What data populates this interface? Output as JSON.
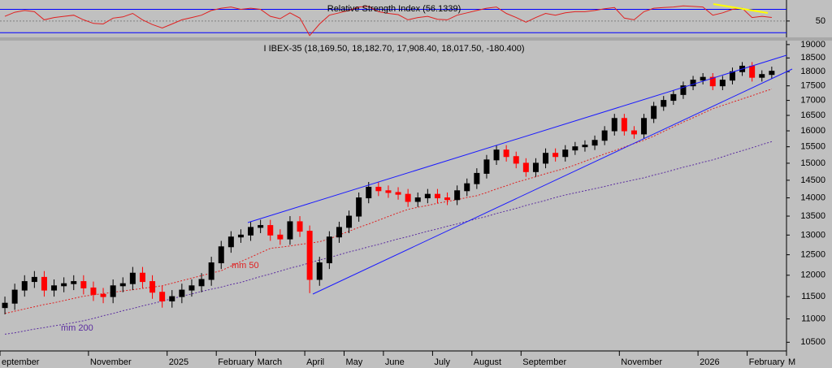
{
  "chart_data": [
    {
      "type": "candlestick",
      "title": "I IBEX-35 (18,169.50, 18,182.70, 17,908.40, 18,017.50, -180.400)",
      "categories": [
        "eptember",
        null,
        null,
        null,
        null,
        null,
        null,
        null,
        null,
        "November",
        null,
        null,
        null,
        null,
        null,
        null,
        null,
        "2025",
        null,
        null,
        null,
        null,
        "February",
        null,
        null,
        null,
        "March",
        null,
        null,
        null,
        null,
        "April",
        null,
        null,
        null,
        "May",
        null,
        null,
        null,
        "June",
        null,
        null,
        null,
        null,
        "July",
        null,
        null,
        null,
        "August",
        null,
        null,
        null,
        null,
        "September",
        null,
        null,
        null,
        null,
        null,
        null,
        null,
        null,
        null,
        "November",
        null,
        null,
        null,
        null,
        null,
        null,
        null,
        "2026",
        null,
        null,
        null,
        null,
        "February",
        null,
        null,
        null,
        "M"
      ],
      "open": [
        11250,
        11350,
        11650,
        11850,
        11950,
        11650,
        11750,
        11800,
        11850,
        11700,
        11550,
        11500,
        11750,
        11800,
        12050,
        11850,
        11600,
        11400,
        11500,
        11650,
        11750,
        11900,
        12300,
        12700,
        12950,
        13000,
        13200,
        13250,
        13000,
        12900,
        13350,
        13100,
        11900,
        12300,
        12950,
        13200,
        13500,
        14000,
        14300,
        14200,
        14150,
        14100,
        13900,
        14000,
        14100,
        14000,
        13950,
        14200,
        14400,
        14700,
        15100,
        15400,
        15200,
        15000,
        14750,
        15000,
        15300,
        15200,
        15400,
        15500,
        15550,
        15700,
        16000,
        16400,
        16000,
        15900,
        16400,
        16800,
        17000,
        17200,
        17500,
        17700,
        17800,
        17500,
        17700,
        18000,
        18200,
        17800,
        17900,
        null,
        null
      ],
      "high": [
        11500,
        11800,
        12000,
        12100,
        12100,
        11900,
        11950,
        12000,
        12000,
        11850,
        11700,
        11900,
        11950,
        12200,
        12200,
        12000,
        11750,
        11650,
        11800,
        11900,
        12050,
        12450,
        12850,
        13100,
        13150,
        13350,
        13400,
        13400,
        13150,
        13500,
        13500,
        13250,
        12450,
        13100,
        13350,
        13650,
        14150,
        14450,
        14450,
        14350,
        14300,
        14250,
        14150,
        14250,
        14250,
        14150,
        14350,
        14550,
        14850,
        15250,
        15550,
        15550,
        15350,
        15150,
        15150,
        15450,
        15450,
        15550,
        15650,
        15700,
        15850,
        16150,
        16550,
        16550,
        16150,
        16550,
        16950,
        17150,
        17350,
        17650,
        17850,
        17950,
        17950,
        17850,
        18150,
        18350,
        18350,
        18050,
        18182.7,
        null,
        null
      ],
      "low": [
        11100,
        11200,
        11500,
        11700,
        11500,
        11500,
        11600,
        11650,
        11550,
        11400,
        11350,
        11350,
        11600,
        11650,
        11700,
        11450,
        11250,
        11250,
        11350,
        11500,
        11600,
        11750,
        12150,
        12550,
        12800,
        12850,
        13050,
        12850,
        12750,
        12750,
        12950,
        11580,
        11750,
        12150,
        12800,
        13050,
        13350,
        13850,
        14050,
        14000,
        13950,
        13750,
        13750,
        13850,
        13850,
        13800,
        13800,
        14050,
        14250,
        14550,
        14950,
        15050,
        14850,
        14600,
        14600,
        14850,
        15050,
        15050,
        15250,
        15350,
        15400,
        15550,
        15850,
        15850,
        15750,
        15750,
        16250,
        16650,
        16850,
        17050,
        17350,
        17550,
        17350,
        17350,
        17550,
        17850,
        17650,
        17650,
        17750,
        null,
        null
      ],
      "close": [
        11350,
        11650,
        11850,
        11950,
        11650,
        11750,
        11800,
        11850,
        11700,
        11550,
        11500,
        11750,
        11800,
        12050,
        11850,
        11600,
        11400,
        11500,
        11650,
        11750,
        11900,
        12300,
        12700,
        12950,
        13000,
        13200,
        13250,
        13000,
        12900,
        13350,
        13100,
        11900,
        12300,
        12950,
        13200,
        13500,
        14000,
        14300,
        14200,
        14150,
        14100,
        13900,
        14000,
        14100,
        14000,
        13950,
        14200,
        14400,
        14700,
        15100,
        15400,
        15200,
        15000,
        14750,
        15000,
        15300,
        15200,
        15400,
        15500,
        15550,
        15700,
        16000,
        16400,
        16000,
        15900,
        16400,
        16800,
        17000,
        17200,
        17500,
        17700,
        17800,
        17500,
        17700,
        18000,
        18200,
        17800,
        17900,
        18017.5,
        null,
        null
      ],
      "up_color": "#000000",
      "down_color": "#ff0000",
      "series": [
        {
          "name": "mm 50",
          "color": "#e02020",
          "values": [
            11120,
            11170,
            11220,
            11270,
            11320,
            11360,
            11410,
            11460,
            11510,
            11540,
            11570,
            11600,
            11630,
            11660,
            11690,
            11720,
            11750,
            11810,
            11870,
            11930,
            11990,
            12050,
            12110,
            12220,
            12330,
            12440,
            12550,
            12660,
            12690,
            12720,
            12760,
            12790,
            12830,
            12900,
            13000,
            13100,
            13200,
            13290,
            13390,
            13490,
            13590,
            13680,
            13740,
            13790,
            13850,
            13900,
            13950,
            14010,
            14060,
            14150,
            14250,
            14340,
            14440,
            14520,
            14600,
            14690,
            14770,
            14850,
            14950,
            15060,
            15170,
            15280,
            15380,
            15490,
            15600,
            15700,
            15830,
            15980,
            16130,
            16280,
            16420,
            16570,
            16720,
            16830,
            16940,
            17050,
            17160,
            17280,
            17390,
            null,
            null
          ]
        },
        {
          "name": "mm 200",
          "color": "#5a2ca0",
          "values": [
            10670,
            10700,
            10740,
            10780,
            10810,
            10850,
            10880,
            10920,
            10960,
            11010,
            11070,
            11120,
            11180,
            11230,
            11290,
            11340,
            11400,
            11450,
            11510,
            11560,
            11620,
            11670,
            11720,
            11780,
            11830,
            11900,
            11970,
            12030,
            12100,
            12170,
            12230,
            12300,
            12370,
            12430,
            12500,
            12570,
            12630,
            12700,
            12760,
            12830,
            12900,
            12960,
            13030,
            13100,
            13160,
            13230,
            13290,
            13360,
            13430,
            13490,
            13570,
            13640,
            13710,
            13790,
            13860,
            13930,
            14010,
            14080,
            14140,
            14200,
            14260,
            14320,
            14390,
            14450,
            14510,
            14570,
            14650,
            14720,
            14800,
            14880,
            14950,
            15030,
            15100,
            15190,
            15290,
            15380,
            15470,
            15570,
            15660,
            null,
            null
          ]
        }
      ],
      "ylim": [
        10320,
        19150
      ],
      "log_scale": true,
      "yticks": [
        10500,
        11000,
        11500,
        12000,
        12500,
        13000,
        13500,
        14000,
        14500,
        15000,
        15500,
        16000,
        16500,
        17000,
        17500,
        18000,
        18500,
        19000
      ]
    },
    {
      "type": "line",
      "title": "Relative Strength Index (56.1339)",
      "color": "#e02020",
      "values": [
        58,
        65,
        68,
        66,
        52,
        56,
        58,
        60,
        52,
        46,
        45,
        55,
        57,
        63,
        52,
        44,
        38,
        45,
        52,
        56,
        60,
        68,
        72,
        74,
        70,
        72,
        70,
        58,
        54,
        64,
        55,
        25,
        45,
        60,
        64,
        68,
        74,
        75,
        66,
        63,
        61,
        52,
        56,
        58,
        53,
        52,
        60,
        64,
        68,
        72,
        74,
        63,
        56,
        48,
        56,
        63,
        60,
        64,
        66,
        66,
        68,
        71,
        73,
        55,
        52,
        66,
        72,
        73,
        74,
        76,
        75,
        74,
        60,
        64,
        70,
        72,
        56,
        58,
        56.1339,
        null,
        null
      ],
      "ylim": [
        22,
        86
      ],
      "yticks": [
        50
      ],
      "bands": [
        30,
        70
      ],
      "band_color": "#0000ff"
    }
  ]
}
